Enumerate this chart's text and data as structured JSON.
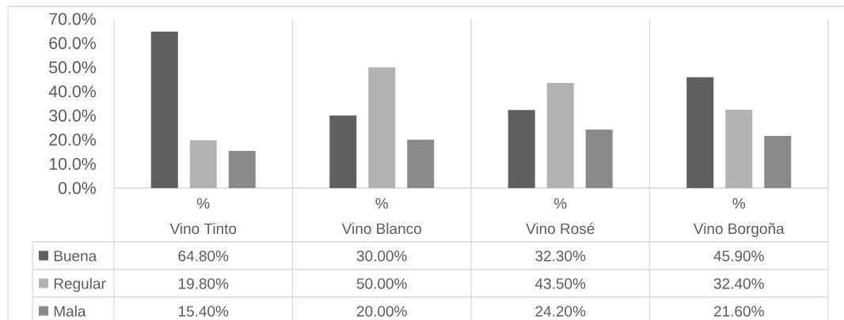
{
  "chart_data": {
    "type": "bar",
    "categories": [
      "Vino Tinto",
      "Vino Blanco",
      "Vino Rosé",
      "Vino Borgoña"
    ],
    "series": [
      {
        "name": "Buena",
        "color": "#5f5f5f",
        "values": [
          64.8,
          30.0,
          32.3,
          45.9
        ],
        "value_labels": [
          "64.80%",
          "30.00%",
          "32.30%",
          "45.90%"
        ]
      },
      {
        "name": "Regular",
        "color": "#b2b2b2",
        "values": [
          19.8,
          50.0,
          43.5,
          32.4
        ],
        "value_labels": [
          "19.80%",
          "50.00%",
          "43.50%",
          "32.40%"
        ]
      },
      {
        "name": "Mala",
        "color": "#8a8a8a",
        "values": [
          15.4,
          20.0,
          24.2,
          21.6
        ],
        "value_labels": [
          "15.40%",
          "20.00%",
          "24.20%",
          "21.60%"
        ]
      }
    ],
    "ylim": [
      0,
      70
    ],
    "yticks": [
      {
        "value": 0,
        "label": "0.0%"
      },
      {
        "value": 10,
        "label": "10.0%"
      },
      {
        "value": 20,
        "label": "20.0%"
      },
      {
        "value": 30,
        "label": "30.0%"
      },
      {
        "value": 40,
        "label": "40.0%"
      },
      {
        "value": 50,
        "label": "50.0%"
      },
      {
        "value": 60,
        "label": "60.0%"
      },
      {
        "value": 70,
        "label": "70.0%"
      }
    ],
    "grid": "x",
    "legend": "bottom",
    "annotations": [
      "%",
      "%",
      "%",
      "%"
    ]
  }
}
